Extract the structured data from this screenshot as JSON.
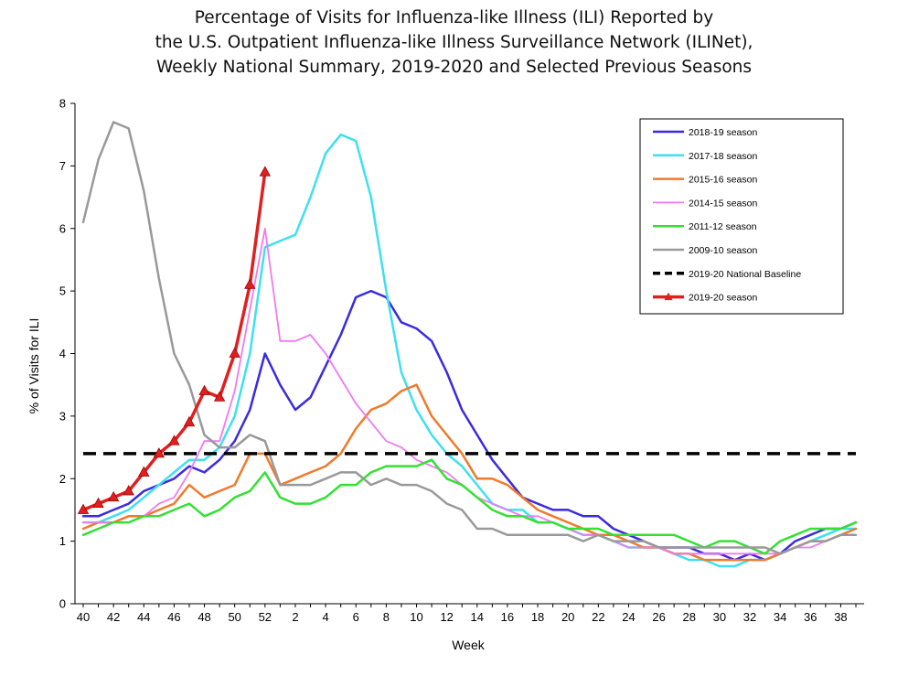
{
  "chart_data": {
    "type": "line",
    "title_lines": [
      "Percentage of Visits for Influenza-like Illness (ILI) Reported by",
      "the U.S. Outpatient Influenza-like Illness Surveillance Network (ILINet),",
      "Weekly National Summary, 2019-2020 and Selected Previous Seasons"
    ],
    "xlabel": "Week",
    "ylabel": "% of Visits for ILI",
    "ylim": [
      0,
      8
    ],
    "yticks": [
      "0",
      "1",
      "2",
      "3",
      "4",
      "5",
      "6",
      "7",
      "8"
    ],
    "xtick_labels": [
      "40",
      "42",
      "44",
      "46",
      "48",
      "50",
      "52",
      "2",
      "4",
      "6",
      "8",
      "10",
      "12",
      "14",
      "16",
      "18",
      "20",
      "22",
      "24",
      "26",
      "28",
      "30",
      "32",
      "34",
      "36",
      "38"
    ],
    "weeks": [
      "40",
      "41",
      "42",
      "43",
      "44",
      "45",
      "46",
      "47",
      "48",
      "49",
      "50",
      "51",
      "52",
      "1",
      "2",
      "3",
      "4",
      "5",
      "6",
      "7",
      "8",
      "9",
      "10",
      "11",
      "12",
      "13",
      "14",
      "15",
      "16",
      "17",
      "18",
      "19",
      "20",
      "21",
      "22",
      "23",
      "24",
      "25",
      "26",
      "27",
      "28",
      "29",
      "30",
      "31",
      "32",
      "33",
      "34",
      "35",
      "36",
      "37",
      "38",
      "39"
    ],
    "legend_position": "top-right",
    "grid": false,
    "series": [
      {
        "name": "2018-19 season",
        "color": "#3a2be0",
        "width": 2.5,
        "dash": "",
        "markers": false,
        "values": [
          1.4,
          1.4,
          1.5,
          1.6,
          1.8,
          1.9,
          2.0,
          2.2,
          2.1,
          2.3,
          2.6,
          3.1,
          4.0,
          3.5,
          3.1,
          3.3,
          3.8,
          4.3,
          4.9,
          5.0,
          4.9,
          4.5,
          4.4,
          4.2,
          3.7,
          3.1,
          2.7,
          2.3,
          2.0,
          1.7,
          1.6,
          1.5,
          1.5,
          1.4,
          1.4,
          1.2,
          1.1,
          1.0,
          0.9,
          0.9,
          0.9,
          0.8,
          0.8,
          0.7,
          0.8,
          0.7,
          0.8,
          1.0,
          1.1,
          1.2,
          1.2,
          1.3
        ]
      },
      {
        "name": "2017-18 season",
        "color": "#3ee0f0",
        "width": 2.5,
        "dash": "",
        "markers": false,
        "values": [
          1.3,
          1.3,
          1.4,
          1.5,
          1.7,
          1.9,
          2.1,
          2.3,
          2.3,
          2.5,
          3.0,
          4.0,
          5.7,
          5.8,
          5.9,
          6.5,
          7.2,
          7.5,
          7.4,
          6.5,
          5.0,
          3.7,
          3.1,
          2.7,
          2.4,
          2.2,
          1.9,
          1.6,
          1.5,
          1.5,
          1.3,
          1.3,
          1.2,
          1.1,
          1.1,
          1.0,
          0.9,
          0.9,
          0.9,
          0.8,
          0.7,
          0.7,
          0.6,
          0.6,
          0.7,
          0.7,
          0.8,
          0.9,
          1.0,
          1.1,
          1.2,
          1.2
        ]
      },
      {
        "name": "2015-16 season",
        "color": "#f07a2b",
        "width": 2.5,
        "dash": "",
        "markers": false,
        "values": [
          1.2,
          1.3,
          1.3,
          1.4,
          1.4,
          1.5,
          1.6,
          1.9,
          1.7,
          1.8,
          1.9,
          2.4,
          2.4,
          1.9,
          2.0,
          2.1,
          2.2,
          2.4,
          2.8,
          3.1,
          3.2,
          3.4,
          3.5,
          3.0,
          2.7,
          2.4,
          2.0,
          2.0,
          1.9,
          1.7,
          1.5,
          1.4,
          1.3,
          1.2,
          1.1,
          1.1,
          1.0,
          0.9,
          0.9,
          0.8,
          0.8,
          0.7,
          0.7,
          0.7,
          0.7,
          0.7,
          0.8,
          0.9,
          1.0,
          1.0,
          1.1,
          1.2
        ]
      },
      {
        "name": "2014-15 season",
        "color": "#f07af0",
        "width": 1.8,
        "dash": "",
        "markers": false,
        "values": [
          1.3,
          1.3,
          1.3,
          1.3,
          1.4,
          1.6,
          1.7,
          2.1,
          2.6,
          2.6,
          3.4,
          4.7,
          6.0,
          4.2,
          4.2,
          4.3,
          4.0,
          3.6,
          3.2,
          2.9,
          2.6,
          2.5,
          2.3,
          2.2,
          2.1,
          1.9,
          1.7,
          1.6,
          1.5,
          1.4,
          1.4,
          1.3,
          1.2,
          1.1,
          1.1,
          1.0,
          0.9,
          0.9,
          0.9,
          0.8,
          0.8,
          0.8,
          0.8,
          0.8,
          0.8,
          0.8,
          0.8,
          0.9,
          0.9,
          1.0,
          1.1,
          1.1
        ]
      },
      {
        "name": "2011-12 season",
        "color": "#34e034",
        "width": 2.5,
        "dash": "",
        "markers": false,
        "values": [
          1.1,
          1.2,
          1.3,
          1.3,
          1.4,
          1.4,
          1.5,
          1.6,
          1.4,
          1.5,
          1.7,
          1.8,
          2.1,
          1.7,
          1.6,
          1.6,
          1.7,
          1.9,
          1.9,
          2.1,
          2.2,
          2.2,
          2.2,
          2.3,
          2.0,
          1.9,
          1.7,
          1.5,
          1.4,
          1.4,
          1.3,
          1.3,
          1.2,
          1.2,
          1.2,
          1.1,
          1.1,
          1.1,
          1.1,
          1.1,
          1.0,
          0.9,
          1.0,
          1.0,
          0.9,
          0.8,
          1.0,
          1.1,
          1.2,
          1.2,
          1.2,
          1.3
        ]
      },
      {
        "name": "2009-10 season",
        "color": "#999999",
        "width": 2.5,
        "dash": "",
        "markers": false,
        "values": [
          6.1,
          7.1,
          7.7,
          7.6,
          6.6,
          5.2,
          4.0,
          3.5,
          2.7,
          2.5,
          2.5,
          2.7,
          2.6,
          1.9,
          1.9,
          1.9,
          2.0,
          2.1,
          2.1,
          1.9,
          2.0,
          1.9,
          1.9,
          1.8,
          1.6,
          1.5,
          1.2,
          1.2,
          1.1,
          1.1,
          1.1,
          1.1,
          1.1,
          1.0,
          1.1,
          1.0,
          1.0,
          1.0,
          0.9,
          0.9,
          0.9,
          0.9,
          0.9,
          0.9,
          0.9,
          0.9,
          0.8,
          0.9,
          1.0,
          1.0,
          1.1,
          1.1
        ]
      },
      {
        "name": "2019-20 National Baseline",
        "color": "#000000",
        "width": 3.5,
        "dash": "14,8",
        "markers": false,
        "values": [
          2.4,
          2.4,
          2.4,
          2.4,
          2.4,
          2.4,
          2.4,
          2.4,
          2.4,
          2.4,
          2.4,
          2.4,
          2.4,
          2.4,
          2.4,
          2.4,
          2.4,
          2.4,
          2.4,
          2.4,
          2.4,
          2.4,
          2.4,
          2.4,
          2.4,
          2.4,
          2.4,
          2.4,
          2.4,
          2.4,
          2.4,
          2.4,
          2.4,
          2.4,
          2.4,
          2.4,
          2.4,
          2.4,
          2.4,
          2.4,
          2.4,
          2.4,
          2.4,
          2.4,
          2.4,
          2.4,
          2.4,
          2.4,
          2.4,
          2.4,
          2.4,
          2.4
        ]
      },
      {
        "name": "2019-20 season",
        "color": "#e02020",
        "width": 3.5,
        "dash": "",
        "markers": true,
        "values": [
          1.5,
          1.6,
          1.7,
          1.8,
          2.1,
          2.4,
          2.6,
          2.9,
          3.4,
          3.3,
          4.0,
          5.1,
          6.9
        ]
      }
    ]
  }
}
